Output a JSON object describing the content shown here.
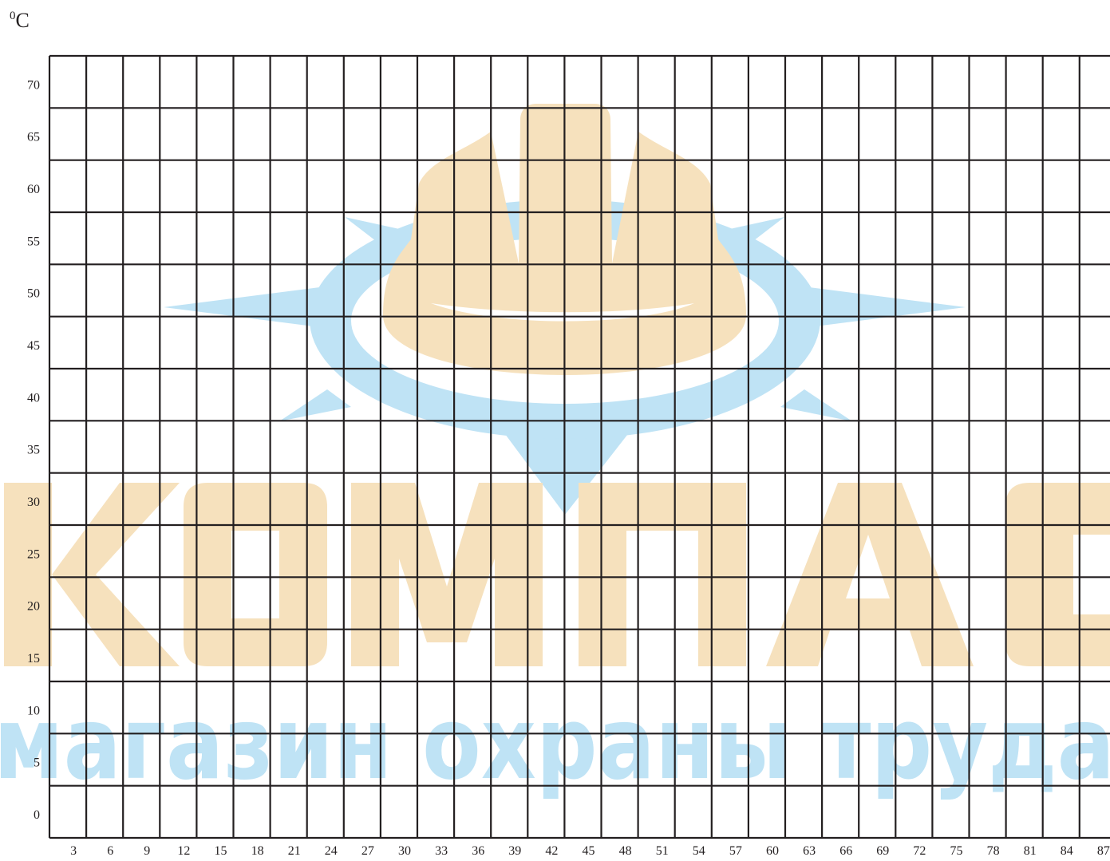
{
  "chart_data": {
    "type": "line",
    "title": "",
    "xlabel": "",
    "ylabel": "",
    "unit_label": {
      "sup": "0",
      "text": "C"
    },
    "x_ticks": [
      3,
      6,
      9,
      12,
      15,
      18,
      21,
      24,
      27,
      30,
      33,
      36,
      39,
      42,
      45,
      48,
      51,
      54,
      57,
      60,
      63,
      66,
      69,
      72,
      75,
      78,
      81,
      84,
      87
    ],
    "y_ticks": [
      0,
      5,
      10,
      15,
      20,
      25,
      30,
      35,
      40,
      45,
      50,
      55,
      60,
      65,
      70
    ],
    "xlim": [
      0,
      87
    ],
    "ylim": [
      0,
      75
    ],
    "grid": true,
    "series": []
  },
  "watermark": {
    "brand": "КОМПАС",
    "tagline": "магазин охраны труда",
    "colors": {
      "orange": "#f6e1bd",
      "blue": "#bfe3f5"
    }
  }
}
